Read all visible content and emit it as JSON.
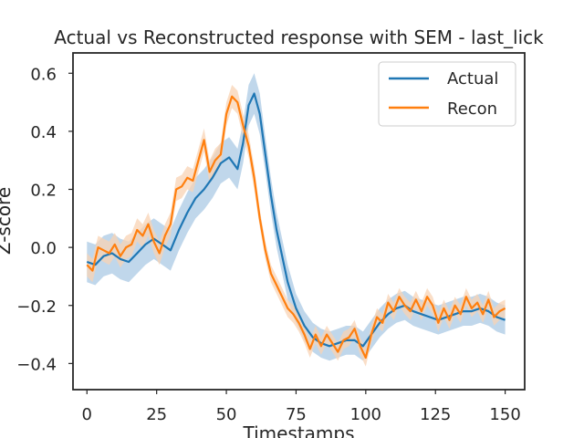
{
  "chart_data": {
    "type": "line",
    "title": "Actual vs Reconstructed response with SEM - last_lick",
    "xlabel": "Timestamps",
    "ylabel": "Z-score",
    "xlim": [
      -5,
      157
    ],
    "ylim": [
      -0.49,
      0.67
    ],
    "xticks": [
      0,
      25,
      50,
      75,
      100,
      125,
      150
    ],
    "yticks": [
      -0.4,
      -0.2,
      0.0,
      0.2,
      0.4,
      0.6
    ],
    "xtick_labels": [
      "0",
      "25",
      "50",
      "75",
      "100",
      "125",
      "150"
    ],
    "ytick_labels": [
      "−0.4",
      "−0.2",
      "0.0",
      "0.2",
      "0.4",
      "0.6"
    ],
    "grid": false,
    "legend_position": "top-right",
    "series": [
      {
        "name": "Actual",
        "color": "#1f77b4",
        "band_color": "#b9d3e9",
        "x": [
          0,
          3,
          6,
          9,
          12,
          15,
          18,
          21,
          24,
          27,
          30,
          33,
          36,
          39,
          42,
          45,
          48,
          51,
          54,
          56,
          58,
          60,
          62,
          64,
          66,
          68,
          70,
          72,
          75,
          78,
          81,
          84,
          87,
          90,
          93,
          96,
          99,
          102,
          105,
          108,
          111,
          114,
          117,
          120,
          123,
          126,
          129,
          132,
          135,
          138,
          141,
          144,
          147,
          150
        ],
        "y": [
          -0.05,
          -0.06,
          -0.03,
          -0.02,
          -0.04,
          -0.05,
          -0.02,
          0.01,
          0.03,
          0.01,
          -0.01,
          0.06,
          0.12,
          0.17,
          0.2,
          0.24,
          0.29,
          0.31,
          0.27,
          0.36,
          0.49,
          0.53,
          0.46,
          0.32,
          0.18,
          0.06,
          -0.03,
          -0.12,
          -0.21,
          -0.27,
          -0.31,
          -0.33,
          -0.34,
          -0.33,
          -0.32,
          -0.32,
          -0.34,
          -0.3,
          -0.26,
          -0.23,
          -0.21,
          -0.2,
          -0.22,
          -0.23,
          -0.24,
          -0.25,
          -0.24,
          -0.23,
          -0.22,
          -0.22,
          -0.21,
          -0.22,
          -0.24,
          -0.25
        ],
        "sem": [
          0.07,
          0.07,
          0.07,
          0.07,
          0.07,
          0.07,
          0.07,
          0.07,
          0.07,
          0.07,
          0.07,
          0.07,
          0.07,
          0.07,
          0.07,
          0.07,
          0.07,
          0.07,
          0.07,
          0.07,
          0.07,
          0.07,
          0.07,
          0.06,
          0.06,
          0.06,
          0.06,
          0.06,
          0.05,
          0.05,
          0.05,
          0.05,
          0.05,
          0.05,
          0.05,
          0.05,
          0.05,
          0.05,
          0.05,
          0.05,
          0.05,
          0.05,
          0.05,
          0.05,
          0.05,
          0.05,
          0.05,
          0.05,
          0.05,
          0.05,
          0.05,
          0.05,
          0.05,
          0.05
        ]
      },
      {
        "name": "Recon",
        "color": "#ff7f0e",
        "band_color": "#f8d3b4",
        "x": [
          0,
          2,
          4,
          6,
          8,
          10,
          12,
          14,
          16,
          18,
          20,
          22,
          24,
          26,
          28,
          30,
          32,
          34,
          36,
          38,
          40,
          42,
          44,
          46,
          48,
          50,
          52,
          54,
          56,
          58,
          60,
          62,
          64,
          66,
          68,
          70,
          72,
          74,
          76,
          78,
          80,
          82,
          84,
          86,
          88,
          90,
          92,
          94,
          96,
          98,
          100,
          102,
          104,
          106,
          108,
          110,
          112,
          114,
          116,
          118,
          120,
          122,
          124,
          126,
          128,
          130,
          132,
          134,
          136,
          138,
          140,
          142,
          144,
          146,
          148,
          150
        ],
        "y": [
          -0.06,
          -0.08,
          0.0,
          -0.01,
          -0.02,
          0.01,
          -0.03,
          0.0,
          0.01,
          0.06,
          0.04,
          0.08,
          0.02,
          -0.02,
          0.04,
          0.08,
          0.2,
          0.21,
          0.24,
          0.23,
          0.3,
          0.37,
          0.26,
          0.3,
          0.32,
          0.46,
          0.52,
          0.5,
          0.42,
          0.35,
          0.24,
          0.1,
          -0.01,
          -0.09,
          -0.13,
          -0.17,
          -0.21,
          -0.23,
          -0.26,
          -0.3,
          -0.35,
          -0.3,
          -0.34,
          -0.3,
          -0.33,
          -0.36,
          -0.32,
          -0.31,
          -0.28,
          -0.34,
          -0.38,
          -0.3,
          -0.24,
          -0.26,
          -0.19,
          -0.22,
          -0.17,
          -0.2,
          -0.22,
          -0.18,
          -0.22,
          -0.17,
          -0.2,
          -0.26,
          -0.21,
          -0.25,
          -0.2,
          -0.23,
          -0.17,
          -0.21,
          -0.19,
          -0.23,
          -0.18,
          -0.24,
          -0.22,
          -0.21
        ],
        "sem": [
          0.04,
          0.04,
          0.04,
          0.04,
          0.04,
          0.04,
          0.04,
          0.04,
          0.04,
          0.04,
          0.04,
          0.04,
          0.04,
          0.04,
          0.04,
          0.04,
          0.04,
          0.04,
          0.04,
          0.04,
          0.04,
          0.04,
          0.04,
          0.04,
          0.04,
          0.04,
          0.04,
          0.04,
          0.04,
          0.04,
          0.04,
          0.03,
          0.03,
          0.03,
          0.03,
          0.03,
          0.03,
          0.03,
          0.03,
          0.03,
          0.03,
          0.03,
          0.03,
          0.03,
          0.03,
          0.03,
          0.03,
          0.03,
          0.03,
          0.03,
          0.03,
          0.03,
          0.03,
          0.03,
          0.03,
          0.03,
          0.03,
          0.03,
          0.03,
          0.03,
          0.03,
          0.03,
          0.03,
          0.03,
          0.03,
          0.03,
          0.03,
          0.03,
          0.03,
          0.03,
          0.03,
          0.03,
          0.03,
          0.03,
          0.03,
          0.03
        ]
      }
    ]
  }
}
